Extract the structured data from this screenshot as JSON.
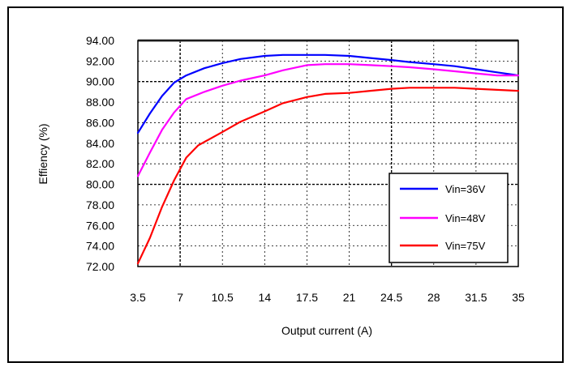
{
  "chart_data": {
    "type": "line",
    "title": "",
    "xlabel": "Output current (A)",
    "ylabel": "Effiency (%)",
    "x_ticks": [
      "3.5",
      "7",
      "10.5",
      "14",
      "17.5",
      "21",
      "24.5",
      "28",
      "31.5",
      "35"
    ],
    "y_ticks": [
      "72.00",
      "74.00",
      "76.00",
      "78.00",
      "80.00",
      "82.00",
      "84.00",
      "86.00",
      "88.00",
      "90.00",
      "92.00",
      "94.00"
    ],
    "xlim": [
      3.5,
      35
    ],
    "ylim": [
      72,
      94
    ],
    "grid": true,
    "legend_position": "bottom-right",
    "series": [
      {
        "name": "Vin=36V",
        "color": "#0000ff",
        "x": [
          3.5,
          4.5,
          5.5,
          6.5,
          7.5,
          9,
          10.5,
          12,
          14,
          15.5,
          17.5,
          19,
          21,
          22.75,
          24.5,
          26,
          28,
          29.75,
          31.5,
          33.25,
          35
        ],
        "y": [
          85.0,
          86.9,
          88.6,
          89.9,
          90.6,
          91.3,
          91.8,
          92.2,
          92.5,
          92.6,
          92.6,
          92.6,
          92.5,
          92.3,
          92.1,
          91.9,
          91.7,
          91.5,
          91.2,
          90.9,
          90.6
        ]
      },
      {
        "name": "Vin=48V",
        "color": "#ff00ff",
        "x": [
          3.5,
          4.5,
          5.5,
          6.5,
          7.5,
          9,
          10.5,
          12,
          14,
          15.5,
          17.5,
          19,
          21,
          22.75,
          24.5,
          26,
          28,
          29.75,
          31.5,
          33.25,
          35
        ],
        "y": [
          80.8,
          83.1,
          85.3,
          87.0,
          88.3,
          89.0,
          89.6,
          90.1,
          90.6,
          91.1,
          91.6,
          91.7,
          91.7,
          91.6,
          91.5,
          91.4,
          91.2,
          91.0,
          90.8,
          90.6,
          90.6
        ]
      },
      {
        "name": "Vin=75V",
        "color": "#ff0000",
        "x": [
          3.5,
          4.5,
          5.5,
          6.5,
          7.5,
          8.5,
          10.5,
          12,
          14,
          15.5,
          17.5,
          19,
          21,
          22.75,
          24.5,
          26,
          28,
          29.75,
          31.5,
          33.25,
          35
        ],
        "y": [
          72.3,
          74.8,
          77.8,
          80.4,
          82.6,
          83.8,
          85.1,
          86.1,
          87.1,
          87.9,
          88.5,
          88.8,
          88.9,
          89.1,
          89.3,
          89.4,
          89.4,
          89.4,
          89.3,
          89.2,
          89.1
        ]
      }
    ]
  }
}
